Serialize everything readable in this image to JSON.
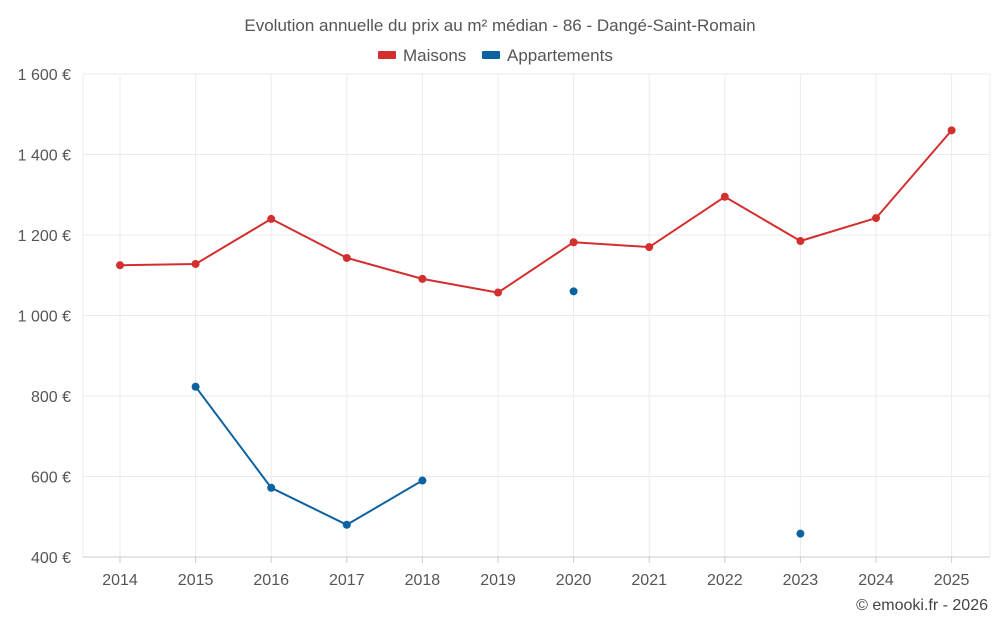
{
  "chart_data": {
    "type": "line",
    "title": "Evolution annuelle du prix au m² médian - 86 - Dangé-Saint-Romain",
    "x": [
      2014,
      2015,
      2016,
      2017,
      2018,
      2019,
      2020,
      2021,
      2022,
      2023,
      2024,
      2025
    ],
    "x_tick_labels": [
      "2014",
      "2015",
      "2016",
      "2017",
      "2018",
      "2019",
      "2020",
      "2021",
      "2022",
      "2023",
      "2024",
      "2025"
    ],
    "ylim": [
      400,
      1600
    ],
    "y_ticks": [
      400,
      600,
      800,
      1000,
      1200,
      1400,
      1600
    ],
    "y_tick_labels": [
      "400 €",
      "600 €",
      "800 €",
      "1 000 €",
      "1 200 €",
      "1 400 €",
      "1 600 €"
    ],
    "grid": true,
    "legend_position": "top-center",
    "series": [
      {
        "name": "Maisons",
        "color": "#d32f2f",
        "values": [
          1125,
          1128,
          1240,
          1143,
          1091,
          1057,
          1182,
          1170,
          1295,
          1185,
          1242,
          1460
        ]
      },
      {
        "name": "Appartements",
        "color": "#0b62a1",
        "values": [
          null,
          823,
          572,
          480,
          590,
          null,
          1060,
          null,
          null,
          458,
          null,
          null
        ]
      }
    ],
    "xlabel": "",
    "ylabel": ""
  },
  "credit": "© emooki.fr - 2026"
}
